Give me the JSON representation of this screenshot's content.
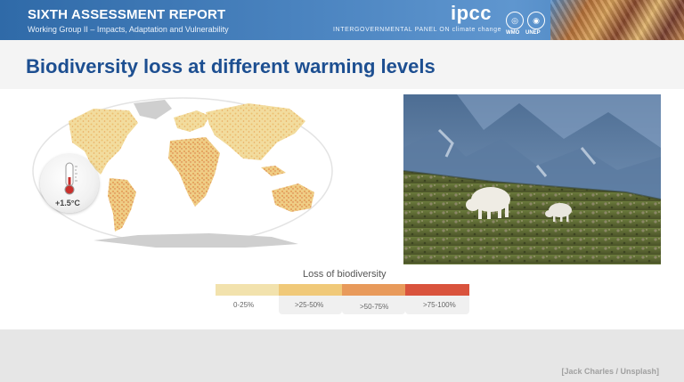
{
  "header": {
    "title": "SIXTH ASSESSMENT REPORT",
    "subtitle": "Working Group II – Impacts, Adaptation and Vulnerability",
    "logo_text": "ipcc",
    "logo_tagline": "INTERGOVERNMENTAL PANEL ON climate change",
    "partner_logos": [
      {
        "name": "wmo-logo",
        "label": "WMO"
      },
      {
        "name": "unep-logo",
        "label": "UNEP"
      }
    ]
  },
  "slide": {
    "title": "Biodiversity loss at different warming levels",
    "map_icon": "world-map",
    "thermometer": {
      "label": "+1.5°C",
      "icon": "thermometer-icon"
    },
    "photo": {
      "subject": "mountain goats on a grassy alpine slope"
    },
    "legend": {
      "title": "Loss of biodiversity",
      "items": [
        {
          "label": "0-25%",
          "color": "#f2e2ad"
        },
        {
          "label": ">25-50%",
          "color": "#f0c979"
        },
        {
          "label": ">50-75%",
          "color": "#e89a5b"
        },
        {
          "label": ">75-100%",
          "color": "#d9533d"
        }
      ]
    }
  },
  "footer": {
    "credit": "[Jack Charles / Unsplash]"
  },
  "colors": {
    "banner": "#3e79b6",
    "title": "#1d4f91",
    "land_low": "#f2e2ad",
    "land_mid": "#f0c979",
    "ocean": "#ffffff",
    "no_data": "#cfcfcf"
  }
}
